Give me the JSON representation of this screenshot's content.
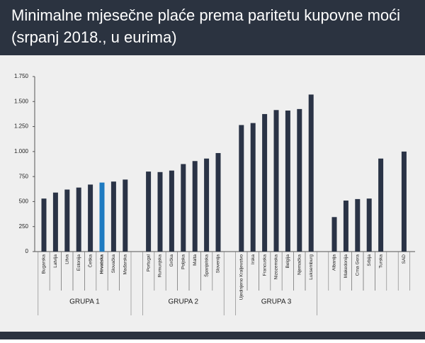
{
  "chart_data": {
    "type": "bar",
    "title": "Minimalne mjesečne plaće prema paritetu kupovne moći",
    "subtitle": "(srpanj 2018., u eurima)",
    "categories": [
      "Bugarska",
      "Latvija",
      "Litva",
      "Estonija",
      "Češka",
      "Hrvatska",
      "Slovačka",
      "Mađarska",
      null,
      "Portugal",
      "Rumunjska",
      "Grčka",
      "Poljska",
      "Malta",
      "Španjolska",
      "Slovenija",
      null,
      "Ujedinjeno Kraljevstvo",
      "Irska",
      "Francuska",
      "Nizozemska",
      "Belgija",
      "Njemačka",
      "Luksemburg",
      null,
      "Albanija",
      "Makedonija",
      "Crna Gora",
      "Srbija",
      "Turska",
      null,
      "SAD"
    ],
    "values": [
      530,
      590,
      620,
      640,
      670,
      690,
      700,
      720,
      null,
      800,
      795,
      810,
      875,
      905,
      930,
      985,
      null,
      1265,
      1285,
      1375,
      1415,
      1410,
      1425,
      1570,
      null,
      345,
      510,
      525,
      530,
      930,
      null,
      1000
    ],
    "color": "#2a3346",
    "bar_colors": [
      "#2a3346",
      "#2a3346",
      "#2a3346",
      "#2a3346",
      "#2a3346",
      "#1f7bc1",
      "#2a3346",
      "#2a3346",
      null,
      "#2a3346",
      "#2a3346",
      "#2a3346",
      "#2a3346",
      "#2a3346",
      "#2a3346",
      "#2a3346",
      null,
      "#2a3346",
      "#2a3346",
      "#2a3346",
      "#2a3346",
      "#2a3346",
      "#2a3346",
      "#2a3346",
      null,
      "#2a3346",
      "#2a3346",
      "#2a3346",
      "#2a3346",
      "#2a3346",
      null,
      "#2a3346"
    ],
    "groups": [
      "GRUPA 1",
      "GRUPA 2",
      "GRUPA 3"
    ],
    "ylim": [
      0,
      1750
    ],
    "yticks": [
      0,
      250,
      500,
      750,
      {
        "value": 1000,
        "label": "1.000"
      },
      {
        "value": 1250,
        "label": "1.250"
      },
      {
        "value": 1500,
        "label": "1.500"
      },
      {
        "value": 1750,
        "label": "1.750"
      }
    ],
    "grid": false
  }
}
